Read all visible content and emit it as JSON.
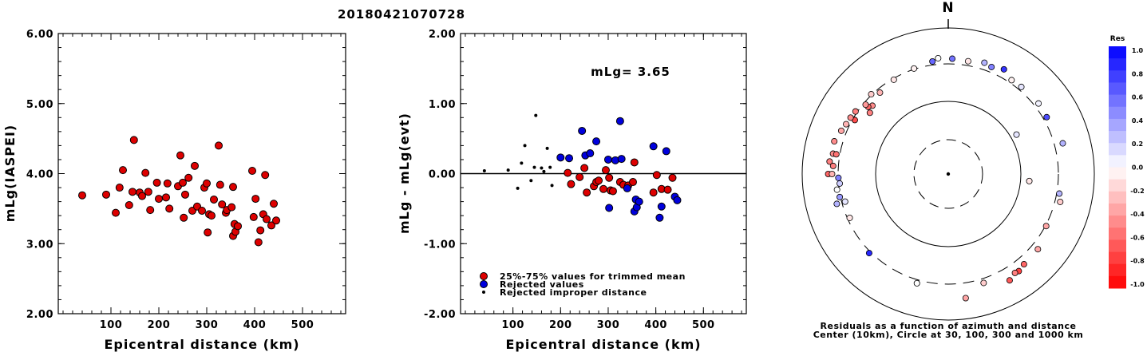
{
  "title": "20180421070728",
  "colors": {
    "trimmed": "#dd0000",
    "rejected": "#0000dd",
    "improper": "#000000"
  },
  "chart_data": [
    {
      "type": "scatter",
      "name": "mLg(IASPEI) vs distance",
      "xlabel": "Epicentral distance (km)",
      "ylabel": "mLg(IASPEI)",
      "xlim": [
        -10,
        590
      ],
      "ylim": [
        2.0,
        6.0
      ],
      "xticks": [
        "100",
        "200",
        "300",
        "400",
        "500"
      ],
      "yticks": [
        "2.00",
        "3.00",
        "4.00",
        "5.00",
        "6.00"
      ],
      "points": [
        [
          40,
          3.69
        ],
        [
          90,
          3.7
        ],
        [
          110,
          3.44
        ],
        [
          118,
          3.8
        ],
        [
          125,
          4.05
        ],
        [
          138,
          3.55
        ],
        [
          145,
          3.74
        ],
        [
          148,
          4.48
        ],
        [
          160,
          3.73
        ],
        [
          165,
          3.68
        ],
        [
          172,
          4.01
        ],
        [
          178,
          3.74
        ],
        [
          182,
          3.48
        ],
        [
          196,
          3.87
        ],
        [
          200,
          3.64
        ],
        [
          215,
          3.66
        ],
        [
          218,
          3.86
        ],
        [
          222,
          3.5
        ],
        [
          240,
          3.82
        ],
        [
          245,
          4.26
        ],
        [
          250,
          3.87
        ],
        [
          252,
          3.37
        ],
        [
          255,
          3.7
        ],
        [
          262,
          3.94
        ],
        [
          270,
          3.47
        ],
        [
          275,
          4.11
        ],
        [
          280,
          3.53
        ],
        [
          290,
          3.47
        ],
        [
          295,
          3.8
        ],
        [
          300,
          3.86
        ],
        [
          302,
          3.16
        ],
        [
          305,
          3.42
        ],
        [
          310,
          3.4
        ],
        [
          315,
          3.63
        ],
        [
          325,
          4.4
        ],
        [
          328,
          3.84
        ],
        [
          332,
          3.56
        ],
        [
          340,
          3.44
        ],
        [
          342,
          3.48
        ],
        [
          352,
          3.52
        ],
        [
          355,
          3.81
        ],
        [
          355,
          3.11
        ],
        [
          358,
          3.28
        ],
        [
          360,
          3.17
        ],
        [
          365,
          3.25
        ],
        [
          395,
          4.04
        ],
        [
          398,
          3.38
        ],
        [
          402,
          3.64
        ],
        [
          408,
          3.02
        ],
        [
          412,
          3.19
        ],
        [
          418,
          3.42
        ],
        [
          422,
          3.98
        ],
        [
          425,
          3.35
        ],
        [
          435,
          3.26
        ],
        [
          440,
          3.57
        ],
        [
          445,
          3.33
        ]
      ]
    },
    {
      "type": "scatter",
      "name": "residual vs distance",
      "xlabel": "Epicentral distance (km)",
      "ylabel": "mLg - mLg(evt)",
      "xlim": [
        -10,
        590
      ],
      "ylim": [
        -2.0,
        2.0
      ],
      "xticks": [
        "100",
        "200",
        "300",
        "400",
        "500"
      ],
      "yticks": [
        "-2.00",
        "-1.00",
        "0.00",
        "1.00",
        "2.00"
      ],
      "annotation": "mLg= 3.65",
      "legend": [
        "25%-75% values for trimmed mean",
        "Rejected values",
        "Rejected improper distance"
      ],
      "series": [
        {
          "name": "25%-75% values for trimmed mean",
          "points": [
            [
              215,
              0.01
            ],
            [
              222,
              -0.15
            ],
            [
              240,
              -0.05
            ],
            [
              250,
              0.08
            ],
            [
              255,
              -0.27
            ],
            [
              270,
              -0.18
            ],
            [
              275,
              -0.12
            ],
            [
              280,
              -0.1
            ],
            [
              290,
              -0.22
            ],
            [
              295,
              0.05
            ],
            [
              302,
              -0.06
            ],
            [
              305,
              -0.24
            ],
            [
              310,
              -0.25
            ],
            [
              325,
              -0.12
            ],
            [
              332,
              -0.16
            ],
            [
              342,
              -0.17
            ],
            [
              352,
              -0.12
            ],
            [
              355,
              0.16
            ],
            [
              395,
              -0.27
            ],
            [
              412,
              -0.22
            ],
            [
              425,
              -0.23
            ],
            [
              435,
              -0.06
            ],
            [
              402,
              -0.02
            ]
          ]
        },
        {
          "name": "Rejected values",
          "points": [
            [
              200,
              0.23
            ],
            [
              218,
              0.22
            ],
            [
              245,
              0.61
            ],
            [
              252,
              0.26
            ],
            [
              262,
              0.29
            ],
            [
              275,
              0.46
            ],
            [
              300,
              0.2
            ],
            [
              302,
              -0.49
            ],
            [
              315,
              0.19
            ],
            [
              325,
              0.75
            ],
            [
              328,
              0.21
            ],
            [
              340,
              -0.21
            ],
            [
              355,
              -0.54
            ],
            [
              358,
              -0.37
            ],
            [
              360,
              -0.48
            ],
            [
              365,
              -0.4
            ],
            [
              395,
              0.39
            ],
            [
              408,
              -0.63
            ],
            [
              412,
              -0.47
            ],
            [
              422,
              0.32
            ],
            [
              440,
              -0.33
            ],
            [
              445,
              -0.38
            ]
          ]
        },
        {
          "name": "Rejected improper distance",
          "points": [
            [
              40,
              0.04
            ],
            [
              90,
              0.05
            ],
            [
              110,
              -0.21
            ],
            [
              118,
              0.15
            ],
            [
              125,
              0.4
            ],
            [
              138,
              -0.1
            ],
            [
              145,
              0.09
            ],
            [
              148,
              0.83
            ],
            [
              160,
              0.08
            ],
            [
              165,
              0.03
            ],
            [
              172,
              0.36
            ],
            [
              178,
              0.09
            ],
            [
              182,
              -0.17
            ]
          ]
        }
      ]
    },
    {
      "type": "polar",
      "name": "residual azimuth-distance",
      "north_label": "N",
      "caption_line1": "Residuals as a function of azimuth and distance",
      "caption_line2": "Center (10km), Circle at 30, 100, 300 and 1000 km",
      "rings_km": [
        30,
        100,
        300,
        1000
      ],
      "points_az_dist_res": [
        [
          -52,
          230,
          -0.5
        ],
        [
          -48,
          250,
          -0.45
        ],
        [
          -50,
          270,
          -0.6
        ],
        [
          -60,
          300,
          -0.7
        ],
        [
          -40,
          285,
          -0.3
        ],
        [
          -30,
          310,
          -0.1
        ],
        [
          -18,
          330,
          -0.05
        ],
        [
          -8,
          360,
          0.6
        ],
        [
          2,
          380,
          0.55
        ],
        [
          -5,
          390,
          0.0
        ],
        [
          10,
          370,
          -0.1
        ],
        [
          18,
          400,
          0.3
        ],
        [
          22,
          380,
          0.5
        ],
        [
          28,
          420,
          0.8
        ],
        [
          34,
          355,
          -0.05
        ],
        [
          40,
          360,
          0.1
        ],
        [
          52,
          370,
          0.05
        ],
        [
          60,
          360,
          0.7
        ],
        [
          75,
          420,
          0.3
        ],
        [
          100,
          350,
          0.3
        ],
        [
          104,
          380,
          -0.2
        ],
        [
          118,
          330,
          -0.35
        ],
        [
          130,
          400,
          -0.35
        ],
        [
          140,
          410,
          -0.6
        ],
        [
          144,
          440,
          -0.75
        ],
        [
          146,
          430,
          -0.5
        ],
        [
          150,
          480,
          -0.65
        ],
        [
          162,
          370,
          -0.2
        ],
        [
          172,
          520,
          -0.35
        ],
        [
          196,
          360,
          0.0
        ],
        [
          225,
          340,
          0.85
        ],
        [
          246,
          300,
          -0.1
        ],
        [
          255,
          290,
          0.1
        ],
        [
          258,
          330,
          0.4
        ],
        [
          262,
          345,
          0.0
        ],
        [
          265,
          310,
          0.2
        ],
        [
          268,
          320,
          0.5
        ],
        [
          270,
          440,
          -0.6
        ],
        [
          276,
          430,
          -0.5
        ],
        [
          280,
          400,
          -0.45
        ],
        [
          286,
          420,
          -0.45
        ],
        [
          292,
          380,
          -0.35
        ],
        [
          296,
          360,
          -0.3
        ],
        [
          310,
          300,
          -0.4
        ],
        [
          316,
          330,
          -0.2
        ],
        [
          304,
          340,
          -0.5
        ],
        [
          300,
          350,
          -0.45
        ],
        [
          280,
          360,
          -0.55
        ],
        [
          274,
          380,
          -0.5
        ],
        [
          270,
          390,
          -0.3
        ],
        [
          255,
          380,
          0.3
        ],
        [
          60,
          120,
          0.1
        ],
        [
          95,
          130,
          -0.1
        ]
      ]
    }
  ],
  "colorbar": {
    "title": "Res",
    "labels": [
      "1.0",
      "0.8",
      "0.6",
      "0.4",
      "0.2",
      "0.0",
      "-0.2",
      "-0.4",
      "-0.6",
      "-0.8",
      "-1.0"
    ]
  }
}
